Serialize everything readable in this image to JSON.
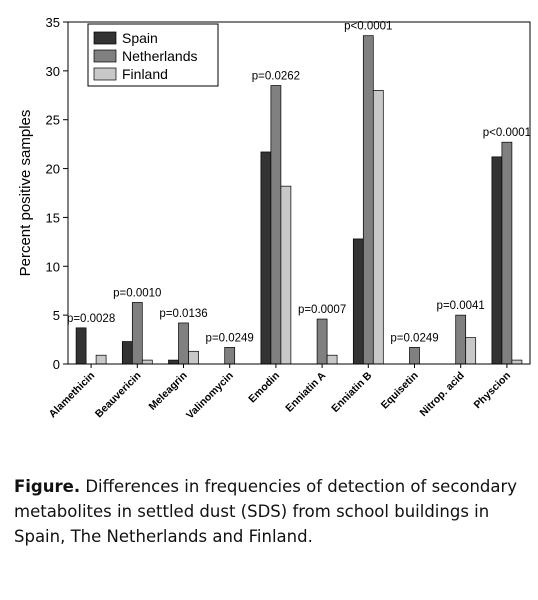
{
  "chart_data": {
    "type": "bar",
    "ylabel": "Percent positive samples",
    "categories": [
      "Alamethicin",
      "Beauvericin",
      "Meleagrin",
      "Valinomycin",
      "Emodin",
      "Enniatin A",
      "Enniatin B",
      "Equisetin",
      "Nitrop. acid",
      "Physcion"
    ],
    "series": [
      {
        "name": "Spain",
        "color": "#333333",
        "values": [
          3.7,
          2.3,
          0.4,
          0,
          21.7,
          0,
          12.8,
          0,
          0,
          21.2
        ]
      },
      {
        "name": "Netherlands",
        "color": "#808080",
        "values": [
          0,
          6.3,
          4.2,
          1.7,
          28.5,
          4.6,
          33.6,
          1.7,
          5.0,
          22.7
        ]
      },
      {
        "name": "Finland",
        "color": "#c8c8c8",
        "values": [
          0.9,
          0.4,
          1.3,
          0,
          18.2,
          0.9,
          28.0,
          0,
          2.7,
          0.4
        ]
      }
    ],
    "annotations": [
      "p=0.0028",
      "p=0.0010",
      "p=0.0136",
      "p=0.0249",
      "p=0.0262",
      "p=0.0007",
      "p<0.0001",
      "p=0.0249",
      "p=0.0041",
      "p<0.0001"
    ],
    "ylim": [
      0,
      35
    ],
    "yticks": [
      0,
      5,
      10,
      15,
      20,
      25,
      30,
      35
    ],
    "legend": "upper left"
  },
  "caption": {
    "label": "Figure.",
    "text": " Differences in frequencies of detection of secondary metabolites in settled dust (SDS) from school buildings in Spain, The Netherlands and Finland."
  }
}
